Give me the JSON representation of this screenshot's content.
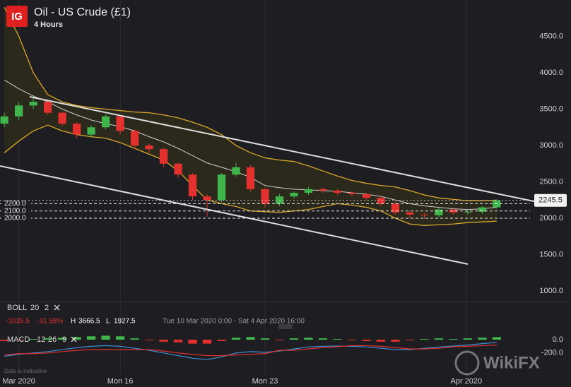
{
  "header": {
    "logo": "IG",
    "title": "Oil - US Crude (£1)",
    "interval": "4 Hours"
  },
  "stats": {
    "change": "-1035.5",
    "change_pct": "-31.58%",
    "high_label": "H",
    "high": "3666.5",
    "low_label": "L",
    "low": "1927.5",
    "range": "Tue 10 Mar 2020 0:00 - Sat 4 Apr 2020 16:00"
  },
  "indicators": {
    "boll": {
      "name": "BOLL",
      "period": "20",
      "deviation": "2"
    },
    "macd": {
      "name": "MACD",
      "fast": "12",
      "slow": "26",
      "signal": "9"
    }
  },
  "footer": {
    "note": "Data is indicative",
    "watermark": "WikiFX"
  },
  "chart_data": [
    {
      "type": "candlestick",
      "x": [
        1,
        1.5,
        2,
        2.5,
        3,
        3.5,
        4,
        4.5,
        5,
        5.5,
        6,
        6.5,
        7,
        7.5,
        8,
        8.5,
        9,
        9.5,
        10,
        10.5,
        11,
        11.5,
        12,
        12.5,
        13,
        13.5,
        14,
        14.5,
        15,
        15.5,
        16,
        16.5,
        17,
        17.5,
        18
      ],
      "open": [
        3300,
        3400,
        3550,
        3600,
        3450,
        3300,
        3150,
        3250,
        3400,
        3200,
        3000,
        2950,
        2750,
        2600,
        2300,
        2250,
        2600,
        2700,
        2400,
        2200,
        2300,
        2350,
        2400,
        2380,
        2350,
        2330,
        2280,
        2200,
        2080,
        2050,
        2040,
        2120,
        2080,
        2090,
        2150
      ],
      "high": [
        3450,
        3600,
        3680,
        3620,
        3470,
        3320,
        3280,
        3430,
        3420,
        3220,
        3030,
        2970,
        2770,
        2620,
        2330,
        2620,
        2760,
        2730,
        2420,
        2330,
        2370,
        2430,
        2420,
        2400,
        2370,
        2350,
        2300,
        2220,
        2100,
        2070,
        2140,
        2140,
        2110,
        2170,
        2260
      ],
      "low": [
        3250,
        3350,
        3500,
        3420,
        3270,
        3100,
        3110,
        3220,
        3150,
        2950,
        2900,
        2700,
        2550,
        2250,
        2020,
        2220,
        2570,
        2370,
        2150,
        2170,
        2270,
        2320,
        2350,
        2320,
        2300,
        2250,
        2170,
        2050,
        2000,
        1990,
        2010,
        2050,
        2050,
        2060,
        2130
      ],
      "close": [
        3400,
        3550,
        3600,
        3450,
        3300,
        3150,
        3250,
        3400,
        3200,
        3000,
        2950,
        2750,
        2600,
        2300,
        2250,
        2600,
        2700,
        2400,
        2200,
        2300,
        2350,
        2400,
        2380,
        2350,
        2330,
        2280,
        2200,
        2080,
        2050,
        2040,
        2120,
        2080,
        2090,
        2150,
        2245.5
      ],
      "up_color": "#3fb54c",
      "down_color": "#e2312f",
      "bands": {
        "color": "#d9a52a",
        "middle_color": "#cfcfcf",
        "fill": "#2c2a1c",
        "upper": [
          4900,
          4500,
          4000,
          3700,
          3600,
          3550,
          3520,
          3500,
          3480,
          3460,
          3450,
          3420,
          3380,
          3320,
          3250,
          3150,
          3000,
          2900,
          2830,
          2800,
          2780,
          2720,
          2650,
          2580,
          2520,
          2480,
          2450,
          2430,
          2380,
          2320,
          2280,
          2260,
          2240,
          2240,
          2250
        ],
        "middle": [
          3900,
          3780,
          3680,
          3600,
          3500,
          3420,
          3350,
          3300,
          3260,
          3200,
          3120,
          3050,
          2960,
          2860,
          2760,
          2700,
          2640,
          2560,
          2450,
          2420,
          2400,
          2390,
          2380,
          2370,
          2350,
          2330,
          2300,
          2250,
          2200,
          2170,
          2150,
          2130,
          2120,
          2130,
          2150
        ],
        "lower": [
          2900,
          3060,
          3200,
          3280,
          3200,
          3150,
          3120,
          3100,
          3040,
          2960,
          2880,
          2800,
          2650,
          2450,
          2250,
          2200,
          2160,
          2100,
          2090,
          2080,
          2100,
          2120,
          2160,
          2200,
          2180,
          2150,
          2100,
          2000,
          1920,
          1900,
          1910,
          1920,
          1940,
          1950,
          1960
        ]
      },
      "xlim": [
        0.85,
        19.15
      ],
      "ylim": [
        874,
        5000
      ],
      "xticks": [
        {
          "value": 1.5,
          "label": "Mar 2020"
        },
        {
          "value": 5,
          "label": "Mon 16"
        },
        {
          "value": 10,
          "label": "Mon 23"
        },
        {
          "value": 16.95,
          "label": "Apr 2020"
        }
      ],
      "yticks": [
        {
          "value": 1000,
          "label": "1000.0"
        },
        {
          "value": 1500,
          "label": "1500.0"
        },
        {
          "value": 2000,
          "label": "2000.0"
        },
        {
          "value": 2500,
          "label": "2500.0"
        },
        {
          "value": 3000,
          "label": "3000.0"
        },
        {
          "value": 3500,
          "label": "3500.0"
        },
        {
          "value": 4000,
          "label": "4000.0"
        },
        {
          "value": 4500,
          "label": "4500.0"
        }
      ],
      "levels": [
        {
          "value": 2200,
          "label": "2200.0"
        },
        {
          "value": 2100,
          "label": "2100.0"
        },
        {
          "value": 2000,
          "label": "2000.0"
        }
      ],
      "last": 2245.5,
      "grid": true
    },
    {
      "type": "macd",
      "histogram": [
        -20,
        -10,
        10,
        20,
        30,
        40,
        50,
        60,
        50,
        20,
        -10,
        -30,
        -40,
        -60,
        -60,
        -20,
        30,
        40,
        20,
        -10,
        20,
        30,
        20,
        10,
        -10,
        -20,
        -30,
        -30,
        -10,
        10,
        20,
        10,
        20,
        30,
        40
      ],
      "macd": [
        -250,
        -220,
        -200,
        -180,
        -150,
        -120,
        -100,
        -90,
        -100,
        -130,
        -160,
        -200,
        -240,
        -280,
        -300,
        -260,
        -200,
        -180,
        -190,
        -170,
        -140,
        -110,
        -100,
        -95,
        -100,
        -110,
        -130,
        -150,
        -150,
        -130,
        -110,
        -95,
        -80,
        -60,
        -40
      ],
      "signal": [
        -230,
        -210,
        -210,
        -200,
        -180,
        -160,
        -150,
        -150,
        -150,
        -150,
        -150,
        -170,
        -200,
        -220,
        -240,
        -240,
        -230,
        -220,
        -210,
        -160,
        -160,
        -140,
        -120,
        -105,
        -90,
        -90,
        -100,
        -120,
        -140,
        -140,
        -130,
        -105,
        -100,
        -90,
        -80
      ],
      "up_color": "#3fb54c",
      "down_color": "#e2312f",
      "macd_color": "#3d8fd6",
      "signal_color": "#e2312f",
      "ylim": [
        -500,
        170
      ],
      "yticks": [
        {
          "value": 0,
          "label": "0.0"
        },
        {
          "value": -200,
          "label": "-200.0"
        }
      ]
    }
  ]
}
